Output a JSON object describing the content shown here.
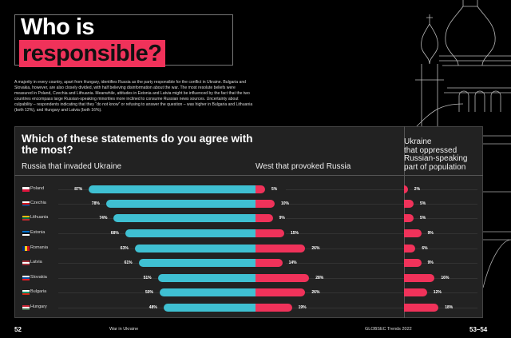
{
  "header": {
    "title_line1": "Who is",
    "title_line2": "responsible?",
    "intro": "A majority in every country, apart from Hungary, identifies Russia as the party responsible for the conflict in Ukraine. Bulgaria and Slovakia, however, are also closely divided, with half believing disinformation about the war. The most resolute beliefs were measured in Poland, Czechia and Lithuania. Meanwhile, attitudes in Estonia and Latvia might be influenced by the fact that the two countries encompass large Russian-speaking minorities more inclined to consume Russian news sources. Uncertainty about culpability – respondents indicating that they “do not know” or refusing to answer the question – was higher in Bulgaria and Lithuania (both 12%), and Hungary and Latvia (both 16%)."
  },
  "chart_data": {
    "type": "bar",
    "title": "Which of these statements do you agree with the most?",
    "categories": [
      "Poland",
      "Czechia",
      "Lithuania",
      "Estonia",
      "Romania",
      "Latvia",
      "Slovakia",
      "Bulgaria",
      "Hungary"
    ],
    "series": [
      {
        "name": "Russia that invaded Ukraine",
        "color": "#3fc0d2",
        "values": [
          87,
          78,
          74,
          68,
          63,
          61,
          51,
          50,
          48
        ]
      },
      {
        "name": "West that provoked Russia",
        "color": "#f0325a",
        "values": [
          5,
          10,
          9,
          15,
          26,
          14,
          28,
          26,
          19
        ]
      },
      {
        "name": "Ukraine that oppressed Russian-speaking part of population",
        "color": "#f0325a",
        "values": [
          2,
          5,
          5,
          9,
          6,
          9,
          16,
          12,
          18
        ]
      }
    ],
    "unit": "%"
  },
  "col3_lines": [
    "Ukraine",
    "that oppressed",
    "Russian-speaking",
    "part of population"
  ],
  "flags": {
    "Poland": [
      "#fff",
      "#dc143c"
    ],
    "Czechia": [
      "#fff",
      "#d7141a",
      "#11457e"
    ],
    "Lithuania": [
      "#fdb913",
      "#006a44",
      "#c1272d"
    ],
    "Estonia": [
      "#0072ce",
      "#000",
      "#fff"
    ],
    "Romania": [
      "#002b7f",
      "#fcd116",
      "#ce1126"
    ],
    "Latvia": [
      "#9e3039",
      "#fff",
      "#9e3039"
    ],
    "Slovakia": [
      "#fff",
      "#0b4ea2",
      "#ee1c25"
    ],
    "Bulgaria": [
      "#fff",
      "#00966e",
      "#d62612"
    ],
    "Hungary": [
      "#ce2939",
      "#fff",
      "#477050"
    ]
  },
  "footer": {
    "page_left": "52",
    "section": "War in Ukraine",
    "publication": "GLOBSEC Trends 2022",
    "page_right": "53–54"
  }
}
